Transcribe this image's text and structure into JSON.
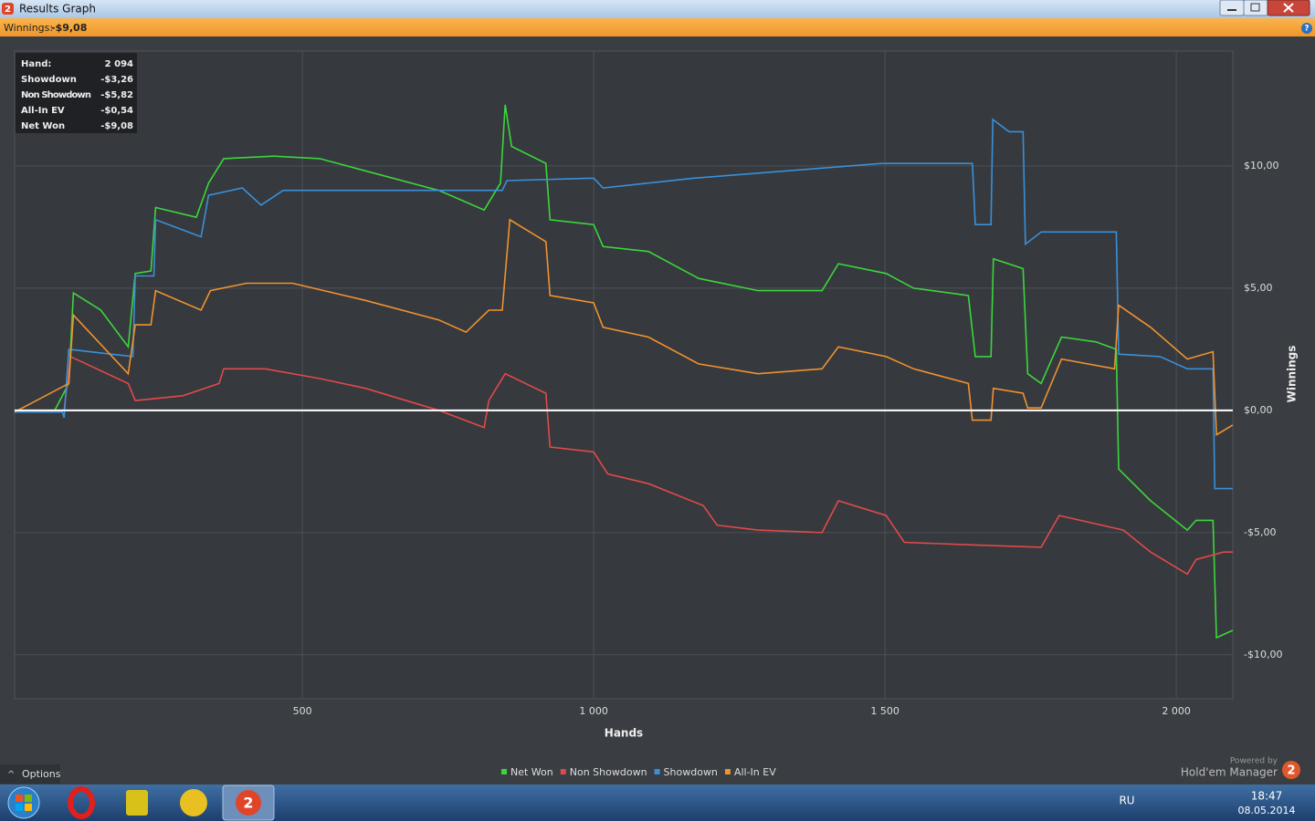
{
  "window": {
    "title": "Results Graph",
    "icon": "2"
  },
  "info_bar": {
    "label": "Winnings:",
    "value": "-$9,08",
    "help": "?"
  },
  "tooltip": {
    "rows": [
      [
        "Hand:",
        "2 094"
      ],
      [
        "Showdown",
        "-$3,26"
      ],
      [
        "Non Showdown",
        "-$5,82"
      ],
      [
        "All-In EV",
        "-$0,54"
      ],
      [
        "Net Won",
        "-$9,08"
      ]
    ]
  },
  "chart_data": {
    "type": "line",
    "xlabel": "Hands",
    "ylabel": "Winnings",
    "xlim": [
      6,
      2097
    ],
    "ylim": [
      -11.8,
      14.7
    ],
    "xticks": [
      500,
      {
        "value": 1000,
        "label": "1 000"
      },
      {
        "value": 1500,
        "label": "1 500"
      },
      {
        "value": 2000,
        "label": "2 000"
      }
    ],
    "yticks": [
      {
        "value": -10,
        "label": "-$10,00"
      },
      {
        "value": -5,
        "label": "-$5,00"
      },
      {
        "value": 0,
        "label": "$0,00"
      },
      {
        "value": 5,
        "label": "$5,00"
      },
      {
        "value": 10,
        "label": "$10,00"
      }
    ],
    "grid": true,
    "series": [
      {
        "name": "Net Won",
        "color": "#3cd63c",
        "x": [
          6,
          75,
          99,
          107,
          154,
          201,
          213,
          240,
          248,
          318,
          339,
          365,
          451,
          530,
          608,
          734,
          812,
          840,
          848,
          859,
          918,
          925,
          1000,
          1016,
          1094,
          1180,
          1282,
          1392,
          1420,
          1502,
          1549,
          1643,
          1655,
          1682,
          1686,
          1737,
          1745,
          1768,
          1803,
          1862,
          1897,
          1901,
          1956,
          2019,
          2034,
          2063,
          2069,
          2097
        ],
        "values": [
          -0.07,
          0,
          1.1,
          4.8,
          4.1,
          2.6,
          5.6,
          5.7,
          8.3,
          7.9,
          9.3,
          10.3,
          10.4,
          10.3,
          9.8,
          9.0,
          8.2,
          9.3,
          12.5,
          10.8,
          10.1,
          7.8,
          7.6,
          6.7,
          6.5,
          5.4,
          4.9,
          4.9,
          6.0,
          5.6,
          5.0,
          4.7,
          2.2,
          2.2,
          6.2,
          5.8,
          1.5,
          1.1,
          3.0,
          2.8,
          2.5,
          -2.4,
          -3.7,
          -4.9,
          -4.5,
          -4.5,
          -9.3,
          -9.0
        ]
      },
      {
        "name": "Non Showdown",
        "color": "#e04a4a",
        "x": [
          6,
          91,
          102,
          201,
          213,
          295,
          357,
          365,
          436,
          530,
          608,
          734,
          812,
          820,
          848,
          918,
          925,
          1000,
          1024,
          1094,
          1188,
          1212,
          1282,
          1392,
          1420,
          1502,
          1533,
          1643,
          1768,
          1799,
          1909,
          1956,
          2019,
          2034,
          2081,
          2097
        ],
        "values": [
          -0.07,
          0,
          2.2,
          1.1,
          0.4,
          0.6,
          1.1,
          1.7,
          1.7,
          1.3,
          0.9,
          0,
          -0.7,
          0.4,
          1.5,
          0.7,
          -1.5,
          -1.7,
          -2.6,
          -3.0,
          -3.9,
          -4.7,
          -4.9,
          -5.0,
          -3.7,
          -4.3,
          -5.4,
          -5.5,
          -5.6,
          -4.3,
          -4.9,
          -5.8,
          -6.7,
          -6.1,
          -5.8,
          -5.8
        ]
      },
      {
        "name": "Showdown",
        "color": "#3a90d8",
        "x": [
          6,
          88,
          91,
          99,
          209,
          213,
          245,
          248,
          326,
          339,
          397,
          429,
          467,
          843,
          851,
          1000,
          1016,
          1172,
          1494,
          1650,
          1655,
          1682,
          1685,
          1713,
          1737,
          1741,
          1768,
          1897,
          1901,
          1972,
          2019,
          2063,
          2066,
          2097
        ],
        "values": [
          -0.07,
          -0.07,
          -0.3,
          2.5,
          2.2,
          5.5,
          5.5,
          7.8,
          7.1,
          8.8,
          9.1,
          8.4,
          9.0,
          9.0,
          9.4,
          9.5,
          9.1,
          9.5,
          10.1,
          10.1,
          7.6,
          7.6,
          11.9,
          11.4,
          11.4,
          6.8,
          7.3,
          7.3,
          2.3,
          2.2,
          1.7,
          1.7,
          -3.2,
          -3.2
        ]
      },
      {
        "name": "All-In EV",
        "color": "#f0922e",
        "x": [
          6,
          99,
          107,
          201,
          213,
          240,
          248,
          326,
          342,
          404,
          483,
          608,
          734,
          781,
          820,
          843,
          856,
          918,
          925,
          1000,
          1016,
          1094,
          1180,
          1282,
          1392,
          1420,
          1502,
          1549,
          1643,
          1650,
          1682,
          1686,
          1737,
          1745,
          1768,
          1803,
          1894,
          1901,
          1956,
          2019,
          2063,
          2069,
          2097
        ],
        "values": [
          -0.07,
          1.1,
          3.9,
          1.5,
          3.5,
          3.5,
          4.9,
          4.1,
          4.9,
          5.2,
          5.2,
          4.5,
          3.7,
          3.2,
          4.1,
          4.1,
          7.8,
          6.9,
          4.7,
          4.4,
          3.4,
          3.0,
          1.9,
          1.5,
          1.7,
          2.6,
          2.2,
          1.7,
          1.1,
          -0.4,
          -0.4,
          0.9,
          0.7,
          0.1,
          0.1,
          2.1,
          1.7,
          4.3,
          3.4,
          2.1,
          2.4,
          -1.0,
          -0.6
        ]
      }
    ]
  },
  "footer": {
    "options": "Options",
    "powered_by": "Powered by",
    "brand": "Hold'em Manager",
    "brand_logo": "2"
  },
  "taskbar": {
    "language": "RU",
    "time": "18:47",
    "date": "08.05.2014"
  }
}
